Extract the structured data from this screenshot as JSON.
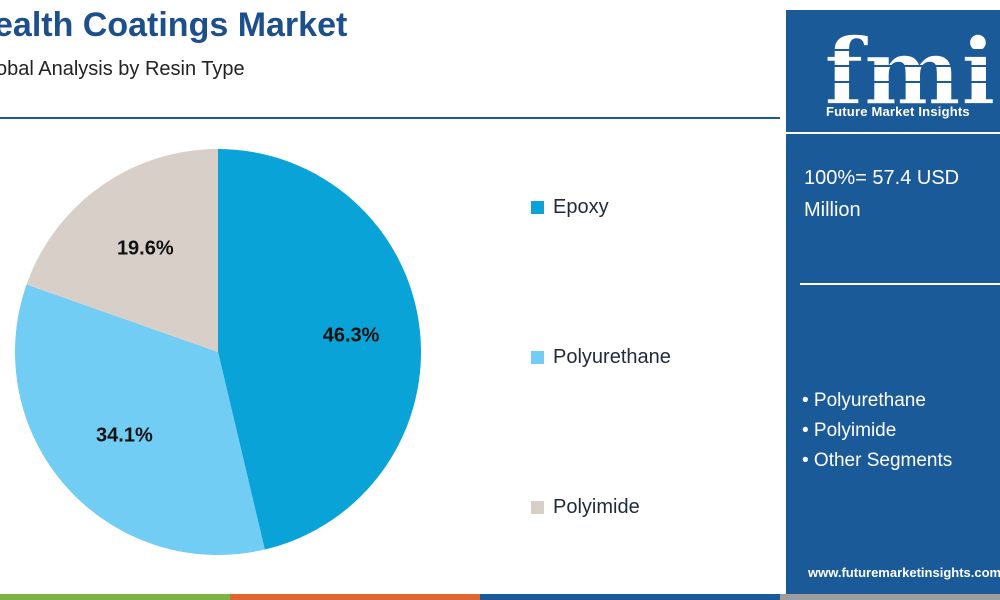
{
  "header": {
    "title": "ealth Coatings Market",
    "subtitle": "obal Analysis by Resin Type"
  },
  "chart_data": {
    "type": "pie",
    "categories": [
      "Epoxy",
      "Polyurethane",
      "Polyimide"
    ],
    "values": [
      46.3,
      34.1,
      19.6
    ],
    "labels": [
      "46.3%",
      "34.1%",
      "19.6%"
    ],
    "colors": [
      "#0aa3d8",
      "#72cdf4",
      "#d9cfc9"
    ],
    "legend_position": "right"
  },
  "side_panel": {
    "logo_mark": "fmi",
    "logo_text": "Future Market Insights",
    "total_line1": "100%= 57.4 USD",
    "total_line2": "Million",
    "segments": [
      "• Polyurethane",
      "• Polyimide",
      "• Other Segments"
    ],
    "url": "www.futuremarketinsights.com",
    "background": "#1a5a98"
  },
  "footer_colors": [
    "#7cb342",
    "#e0662c",
    "#1a5a98",
    "#9e9e9e"
  ]
}
